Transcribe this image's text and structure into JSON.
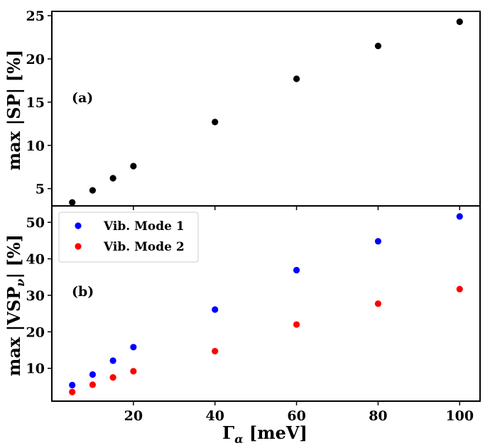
{
  "chart_data": [
    {
      "type": "scatter",
      "panel_label": "(a)",
      "ylabel": "max |SP| [%]",
      "ylim": [
        3.0,
        25.5
      ],
      "yticks": [
        5,
        10,
        15,
        20,
        25
      ],
      "series": [
        {
          "name": "SP",
          "color": "#000000",
          "x": [
            5,
            10,
            15,
            20,
            40,
            60,
            80,
            100
          ],
          "y": [
            3.4,
            4.8,
            6.2,
            7.6,
            12.7,
            17.7,
            21.5,
            24.3
          ]
        }
      ]
    },
    {
      "type": "scatter",
      "panel_label": "(b)",
      "xlabel": "Γα [meV]",
      "ylabel": "max |VSPν| [%]",
      "xlim": [
        0,
        105
      ],
      "ylim": [
        1.0,
        54.5
      ],
      "xticks": [
        20,
        40,
        60,
        80,
        100
      ],
      "yticks": [
        10,
        20,
        30,
        40,
        50
      ],
      "legend_position": "top-left",
      "series": [
        {
          "name": "Vib. Mode 1",
          "color": "#0000ff",
          "x": [
            5,
            10,
            15,
            20,
            40,
            60,
            80,
            100
          ],
          "y": [
            5.4,
            8.3,
            12.1,
            15.8,
            26.1,
            36.9,
            44.8,
            51.6
          ]
        },
        {
          "name": "Vib. Mode 2",
          "color": "#ff0000",
          "x": [
            5,
            10,
            15,
            20,
            40,
            60,
            80,
            100
          ],
          "y": [
            3.5,
            5.5,
            7.5,
            9.2,
            14.7,
            22.0,
            27.7,
            31.7
          ]
        }
      ]
    }
  ],
  "labels": {
    "top_ylabel_main": "max |SP| [%]",
    "bottom_ylabel_main": "max |VSP",
    "bottom_ylabel_sub": "ν",
    "bottom_ylabel_end": "| [%]",
    "xlabel_main": "Γ",
    "xlabel_sub": "α",
    "xlabel_end": " [meV]"
  }
}
